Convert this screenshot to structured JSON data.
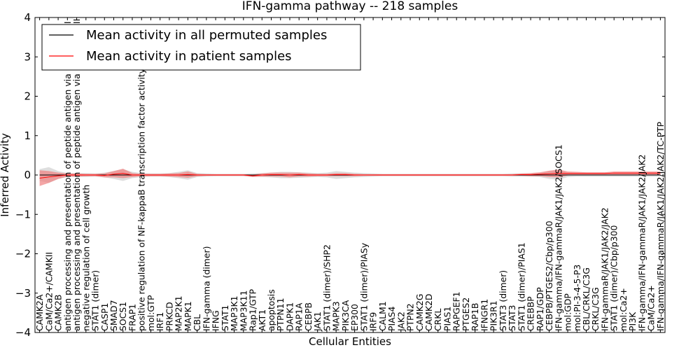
{
  "chart_data": {
    "type": "line",
    "title": "IFN-gamma pathway -- 218 samples",
    "xlabel": "Cellular Entities",
    "ylabel": "Inferred Activity",
    "ylim": [
      -4,
      4
    ],
    "yticks": [
      "−4",
      "−3",
      "−2",
      "−1",
      "0",
      "1",
      "2",
      "3",
      "4"
    ],
    "colors": {
      "permuted": "#000000",
      "patient": "#ff0000",
      "patient_band": "#f08080",
      "permuted_band": "#c8c8c8"
    },
    "legend": {
      "location": "upper-left",
      "entries": [
        "Mean activity in all permuted samples",
        "Mean activity in patient samples"
      ]
    },
    "categories": [
      "CAMK2A",
      "CaM/Ca2+/CAMKII",
      "CAMK2B",
      "antigen processing and presentation of peptide antigen via MHC class I",
      "antigen processing and presentation of peptide antigen via MHC class II",
      "negative regulation of cell growth",
      "STAT1 (dimer)",
      "CASP1",
      "SMAD7",
      "SOCS1",
      "FRAP1",
      "positive regulation of NF-kappaB transcription factor activity",
      "mol:GTP",
      "IRF1",
      "PRKCD",
      "MAP2K1",
      "MAPK1",
      "CBL",
      "IFN-gamma (dimer)",
      "IFNG",
      "STAT1",
      "MAP3K1",
      "MAP3K11",
      "Rap1/GTP",
      "AKT1",
      "apoptosis",
      "PTPN11",
      "DAPK1",
      "RAP1A",
      "CEBPB",
      "JAK1",
      "STAT1 (dimer)/SHP2",
      "MAPK3",
      "PIK3CA",
      "EP300",
      "STAT1 (dimer)/PIASy",
      "IRF9",
      "CALM1",
      "PIAS4",
      "JAK2",
      "PTPN2",
      "CAMK2G",
      "CAMK2D",
      "CRKL",
      "PIAS1",
      "RAPGEF1",
      "PTGES2",
      "RAP1B",
      "IFNGR1",
      "PIK3R1",
      "STAT3 (dimer)",
      "STAT3",
      "STAT1 (dimer)/PIAS1",
      "CREBBP",
      "RAP1/GDP",
      "CEBPB/PTGES2/Cbp/p300",
      "IFN-gamma/IFN-gammaR/JAK1/JAK2/SOCS1",
      "mol:GDP",
      "mol:PI-3-4-5-P3",
      "CBL/CRKL/C3G",
      "CRKL/C3G",
      "IFN-gammaR/JAK1/JAK2/JAK2",
      "STAT1 (dimer)/Cbp/p300",
      "mol:Ca2+",
      "PI3K",
      "IFN-gamma/IFN-gammaR/JAK1/JAK2/JAK2",
      "CaM/Ca2+",
      "IFN-gamma/IFN-gammaR/JAK1/JAK2/JAK2/TC-PTP"
    ],
    "permuted_mean": [
      0.0,
      0.0,
      0.0,
      0.0,
      0.0,
      0.0,
      0.0,
      0.0,
      0.0,
      0.0,
      0.0,
      0.0,
      0.0,
      0.0,
      0.0,
      0.0,
      0.0,
      0.0,
      0.0,
      0.0,
      0.0,
      0.0,
      0.0,
      0.0,
      0.0,
      0.0,
      0.0,
      0.0,
      0.0,
      0.0,
      0.0,
      0.0,
      0.0,
      0.0,
      0.0,
      0.0,
      0.0,
      0.0,
      0.0,
      0.0,
      0.0,
      0.0,
      0.0,
      0.0,
      0.0,
      0.0,
      0.0,
      0.0,
      0.0,
      0.0,
      0.0,
      0.0,
      0.0,
      0.0,
      0.0,
      0.0,
      0.0,
      0.0,
      0.0,
      0.0,
      0.0,
      0.0,
      0.0,
      0.0,
      0.0,
      0.0,
      0.0,
      0.0
    ],
    "permuted_spread": [
      0.15,
      0.2,
      0.1,
      0.05,
      0.05,
      0.05,
      0.04,
      0.06,
      0.1,
      0.15,
      0.08,
      0.05,
      0.04,
      0.04,
      0.05,
      0.08,
      0.12,
      0.05,
      0.04,
      0.03,
      0.03,
      0.03,
      0.03,
      0.04,
      0.05,
      0.06,
      0.08,
      0.08,
      0.07,
      0.06,
      0.05,
      0.06,
      0.1,
      0.08,
      0.06,
      0.05,
      0.04,
      0.03,
      0.03,
      0.03,
      0.03,
      0.03,
      0.03,
      0.03,
      0.03,
      0.03,
      0.03,
      0.03,
      0.03,
      0.03,
      0.03,
      0.04,
      0.04,
      0.04,
      0.05,
      0.1,
      0.12,
      0.05,
      0.04,
      0.04,
      0.04,
      0.04,
      0.04,
      0.04,
      0.04,
      0.04,
      0.04,
      0.04
    ],
    "patient_mean": [
      -0.08,
      -0.05,
      -0.02,
      0.0,
      0.0,
      0.0,
      0.0,
      -0.01,
      0.02,
      0.04,
      0.0,
      0.0,
      0.0,
      0.0,
      0.0,
      0.0,
      0.01,
      0.0,
      0.0,
      0.0,
      0.0,
      0.0,
      0.0,
      -0.02,
      0.0,
      0.01,
      0.01,
      0.0,
      0.01,
      0.0,
      0.0,
      0.0,
      0.01,
      0.01,
      0.0,
      0.0,
      0.0,
      0.0,
      0.0,
      0.0,
      0.0,
      0.0,
      0.0,
      0.0,
      0.0,
      0.0,
      0.0,
      0.0,
      0.0,
      0.0,
      0.0,
      0.0,
      0.01,
      0.01,
      0.02,
      0.03,
      0.04,
      0.04,
      0.04,
      0.04,
      0.04,
      0.04,
      0.05,
      0.05,
      0.05,
      0.05,
      0.05,
      0.05
    ],
    "patient_spread": [
      0.2,
      0.15,
      0.08,
      0.04,
      0.04,
      0.03,
      0.03,
      0.05,
      0.08,
      0.12,
      0.05,
      0.03,
      0.03,
      0.03,
      0.04,
      0.05,
      0.08,
      0.03,
      0.02,
      0.02,
      0.02,
      0.02,
      0.02,
      0.03,
      0.04,
      0.05,
      0.05,
      0.06,
      0.05,
      0.04,
      0.03,
      0.03,
      0.04,
      0.04,
      0.03,
      0.02,
      0.02,
      0.02,
      0.02,
      0.02,
      0.02,
      0.02,
      0.02,
      0.02,
      0.02,
      0.02,
      0.02,
      0.02,
      0.02,
      0.02,
      0.02,
      0.02,
      0.03,
      0.04,
      0.05,
      0.08,
      0.1,
      0.05,
      0.04,
      0.03,
      0.03,
      0.03,
      0.04,
      0.04,
      0.04,
      0.04,
      0.04,
      0.04
    ]
  }
}
